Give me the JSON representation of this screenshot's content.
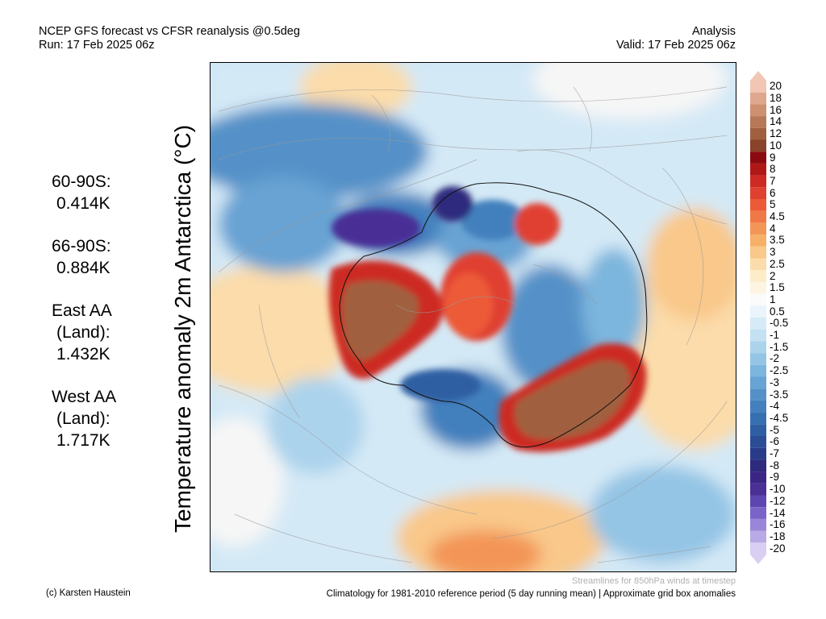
{
  "header": {
    "title_line1": "NCEP GFS forecast vs CFSR reanalysis @0.5deg",
    "title_line2": "Run: 17 Feb 2025 06z",
    "right_line1": "Analysis",
    "right_line2": "Valid: 17 Feb 2025 06z"
  },
  "ylabel": "Temperature anomaly 2m Antarctica (°C)",
  "stats": [
    {
      "label": "60-90S:",
      "value": "0.414K"
    },
    {
      "label": "66-90S:",
      "value": "0.884K"
    },
    {
      "label": "East AA (Land):",
      "label_l1": "East AA",
      "label_l2": "(Land):",
      "value": "1.432K"
    },
    {
      "label": "West AA (Land):",
      "label_l1": "West AA",
      "label_l2": "(Land):",
      "value": "1.717K"
    }
  ],
  "colorbar": {
    "labels": [
      "20",
      "18",
      "16",
      "14",
      "12",
      "10",
      "9",
      "8",
      "7",
      "6",
      "5",
      "4.5",
      "4",
      "3.5",
      "3",
      "2.5",
      "2",
      "1.5",
      "1",
      "0.5",
      "-0.5",
      "-1",
      "-1.5",
      "-2",
      "-2.5",
      "-3",
      "-3.5",
      "-4",
      "-4.5",
      "-5",
      "-6",
      "-7",
      "-8",
      "-9",
      "-10",
      "-12",
      "-14",
      "-16",
      "-18",
      "-20"
    ],
    "colors": [
      "#f2c6b4",
      "#dfa88e",
      "#cd9070",
      "#b67856",
      "#a06040",
      "#8a4228",
      "#8b0a10",
      "#b01818",
      "#cc2a22",
      "#e04030",
      "#ec5a38",
      "#f07846",
      "#f39556",
      "#f6b068",
      "#f9c88a",
      "#fbdcaa",
      "#fcecc8",
      "#fdf5e2",
      "#fbfbfb",
      "#e9f4fb",
      "#d6ebf7",
      "#c3e1f2",
      "#acd3ec",
      "#94c5e5",
      "#7cb5dd",
      "#67a3d3",
      "#5591c8",
      "#4380bd",
      "#3770b0",
      "#2f5fa3",
      "#2b4d96",
      "#2a3c89",
      "#2e2a7d",
      "#3b2585",
      "#4a2f95",
      "#5e46b0",
      "#7b64c7",
      "#9a86d8",
      "#b9a9e6",
      "#d8cff2"
    ]
  },
  "footer": {
    "credit": "(c) Karsten Haustein",
    "note": "Streamlines for 850hPa winds at timestep",
    "climatology": "Climatology for 1981-2010 reference period (5 day running mean) | Approximate grid box anomalies"
  }
}
